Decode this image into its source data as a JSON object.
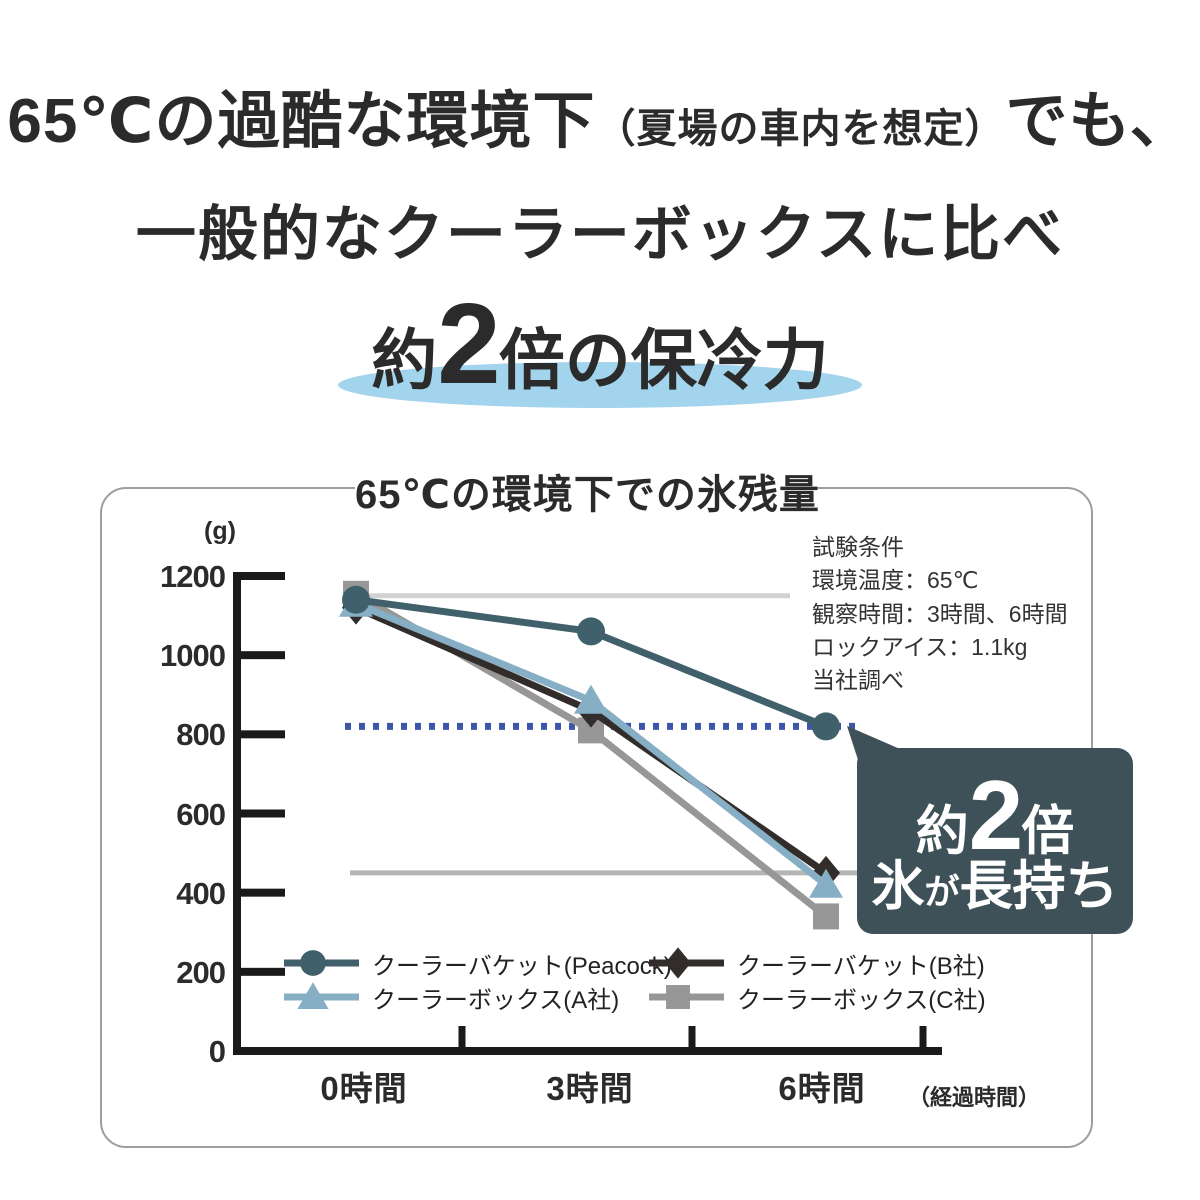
{
  "headline": {
    "line1_main": "65℃の過酷な環境下",
    "line1_paren": "（夏場の車内を想定）",
    "line1_after": "でも、",
    "line2": "一般的なクーラーボックスに比べ",
    "tagline_prefix": "約",
    "tagline_big": "2",
    "tagline_suffix": "倍の保冷力",
    "highlight_color": "#a3d4ee"
  },
  "chart_panel": {
    "title": "65℃の環境下での氷残量",
    "unit_label": "(g)",
    "conditions": {
      "line1": "試験条件",
      "line2": "環境温度：65℃",
      "line3": "観察時間：3時間、6時間",
      "line4": "ロックアイス：1.1kg",
      "line5": "当社調べ"
    },
    "x_axis_suffix": "（経過時間）",
    "callout": {
      "line1_prefix": "約",
      "line1_big": "2",
      "line1_suffix": "倍",
      "line2_head": "氷",
      "line2_small": "が",
      "line2_tail": "長持ち",
      "bg": "#3e5159"
    }
  },
  "chart_data": {
    "type": "line",
    "title": "65℃の環境下での氷残量",
    "ylabel": "(g)",
    "xlabel": "（経過時間）",
    "ylim": [
      0,
      1200
    ],
    "yticks": [
      0,
      200,
      400,
      600,
      800,
      1000,
      1200
    ],
    "x_labels": [
      "0時間",
      "3時間",
      "6時間"
    ],
    "x_hours": [
      0,
      3,
      6
    ],
    "series": [
      {
        "name": "クーラーバケット(Peacock)",
        "marker": "circle",
        "color": "#40616c",
        "values": [
          1140,
          1060,
          820
        ]
      },
      {
        "name": "クーラーバケット(B社)",
        "marker": "diamond",
        "color": "#322d2a",
        "values": [
          1120,
          860,
          450
        ]
      },
      {
        "name": "クーラーボックス(A社)",
        "marker": "triangle",
        "color": "#86aec4",
        "values": [
          1130,
          885,
          420
        ]
      },
      {
        "name": "クーラーボックス(C社)",
        "marker": "square",
        "color": "#979797",
        "values": [
          1155,
          810,
          340
        ]
      }
    ],
    "reference_lines": [
      {
        "style": "solid",
        "value": 1150,
        "color": "#d2d2d2"
      },
      {
        "style": "solid",
        "value": 450,
        "color": "#b5b5b5"
      },
      {
        "style": "dotted",
        "value": 820,
        "color": "#3d56a8"
      }
    ],
    "annotation": "約2倍 氷が長持ち",
    "legend_position": "inside-bottom-left",
    "grid": false
  }
}
